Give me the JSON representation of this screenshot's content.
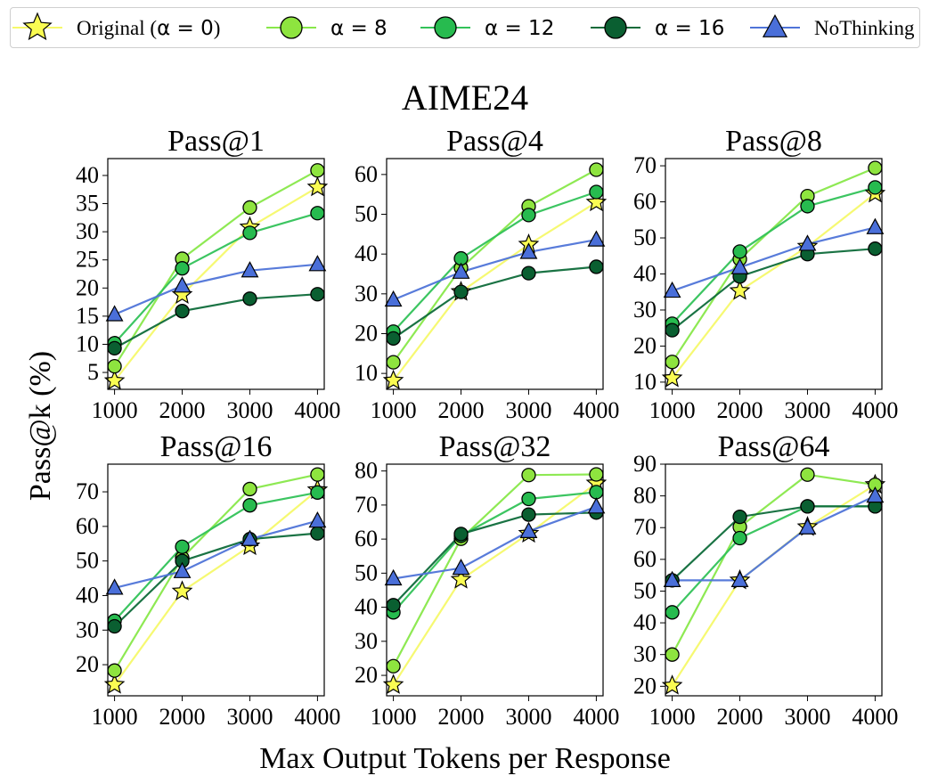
{
  "chart_data": {
    "type": "line",
    "suptitle": "AIME24",
    "xlabel": "Max Output Tokens per Response",
    "ylabel": "Pass@k (%)",
    "x": [
      1000,
      2000,
      3000,
      4000
    ],
    "legend": [
      {
        "key": "orig",
        "label_pre": "Original (",
        "label_math": "α = 0",
        "label_post": ")",
        "color": "#f6f96a",
        "marker": "star",
        "marker_fill": "#fafc52"
      },
      {
        "key": "a8",
        "label_pre": "",
        "label_math": "α = 8",
        "label_post": "",
        "color": "#88e84a",
        "marker": "circle",
        "marker_fill": "#8ee43f"
      },
      {
        "key": "a12",
        "label_pre": "",
        "label_math": "α = 12",
        "label_post": "",
        "color": "#32c259",
        "marker": "circle",
        "marker_fill": "#27bb4f"
      },
      {
        "key": "a16",
        "label_pre": "",
        "label_math": "α = 16",
        "label_post": "",
        "color": "#0e6b3a",
        "marker": "circle",
        "marker_fill": "#0a5f31"
      },
      {
        "key": "nothink",
        "label_pre": "NoThinking",
        "label_math": "",
        "label_post": "",
        "color": "#4f74d8",
        "marker": "triangle",
        "marker_fill": "#4a6fd9"
      }
    ],
    "panels": [
      {
        "title": "Pass@1",
        "ylim": [
          2,
          43
        ],
        "yticks": [
          5,
          10,
          15,
          20,
          25,
          30,
          35,
          40
        ],
        "series": {
          "orig": [
            3.5,
            18.8,
            30.8,
            37.9
          ],
          "a8": [
            6.1,
            25.2,
            34.3,
            40.9
          ],
          "a12": [
            10.2,
            23.5,
            29.8,
            33.3
          ],
          "a16": [
            9.3,
            15.9,
            18.1,
            18.9
          ],
          "nothink": [
            15.3,
            20.4,
            23.1,
            24.2
          ]
        }
      },
      {
        "title": "Pass@4",
        "ylim": [
          6,
          64
        ],
        "yticks": [
          10,
          20,
          30,
          40,
          50,
          60
        ],
        "series": {
          "orig": [
            8.2,
            30.5,
            42.4,
            53.0
          ],
          "a8": [
            12.8,
            36.5,
            52.0,
            61.2
          ],
          "a12": [
            20.5,
            38.9,
            49.8,
            55.6
          ],
          "a16": [
            18.8,
            30.5,
            35.2,
            36.8
          ],
          "nothink": [
            28.5,
            35.5,
            40.5,
            43.6
          ]
        }
      },
      {
        "title": "Pass@8",
        "ylim": [
          8,
          72
        ],
        "yticks": [
          10,
          20,
          30,
          40,
          50,
          60,
          70
        ],
        "series": {
          "orig": [
            11.1,
            35.3,
            47.6,
            62.3
          ],
          "a8": [
            15.6,
            44.1,
            61.6,
            69.4
          ],
          "a12": [
            26.2,
            46.2,
            58.8,
            64.0
          ],
          "a16": [
            24.4,
            39.3,
            45.5,
            47.0
          ],
          "nothink": [
            35.3,
            41.8,
            48.3,
            52.9
          ]
        }
      },
      {
        "title": "Pass@16",
        "ylim": [
          11,
          78
        ],
        "yticks": [
          20,
          30,
          40,
          50,
          60,
          70
        ],
        "series": {
          "orig": [
            14.2,
            41.2,
            54.3,
            70.5
          ],
          "a8": [
            18.3,
            50.9,
            70.8,
            75.0
          ],
          "a12": [
            32.7,
            54.1,
            66.1,
            69.8
          ],
          "a16": [
            31.1,
            50.0,
            56.3,
            58.0
          ],
          "nothink": [
            42.2,
            47.0,
            56.3,
            61.6
          ]
        }
      },
      {
        "title": "Pass@32",
        "ylim": [
          14,
          82
        ],
        "yticks": [
          20,
          30,
          40,
          50,
          60,
          70,
          80
        ],
        "series": {
          "orig": [
            17.2,
            48.1,
            61.6,
            76.4
          ],
          "a8": [
            22.7,
            60.1,
            78.8,
            79.0
          ],
          "a12": [
            38.5,
            61.0,
            71.8,
            73.8
          ],
          "a16": [
            40.6,
            61.5,
            67.2,
            67.8
          ],
          "nothink": [
            48.4,
            51.5,
            62.3,
            69.5
          ]
        }
      },
      {
        "title": "Pass@64",
        "ylim": [
          17,
          90
        ],
        "yticks": [
          20,
          30,
          40,
          50,
          60,
          70,
          80,
          90
        ],
        "series": {
          "orig": [
            20.2,
            53.4,
            70.2,
            83.5
          ],
          "a8": [
            30.0,
            70.2,
            86.7,
            83.5
          ],
          "a12": [
            43.3,
            66.7,
            76.7,
            76.7
          ],
          "a16": [
            53.4,
            73.4,
            76.7,
            76.7
          ],
          "nothink": [
            53.4,
            53.4,
            70.0,
            80.0
          ]
        }
      }
    ]
  }
}
